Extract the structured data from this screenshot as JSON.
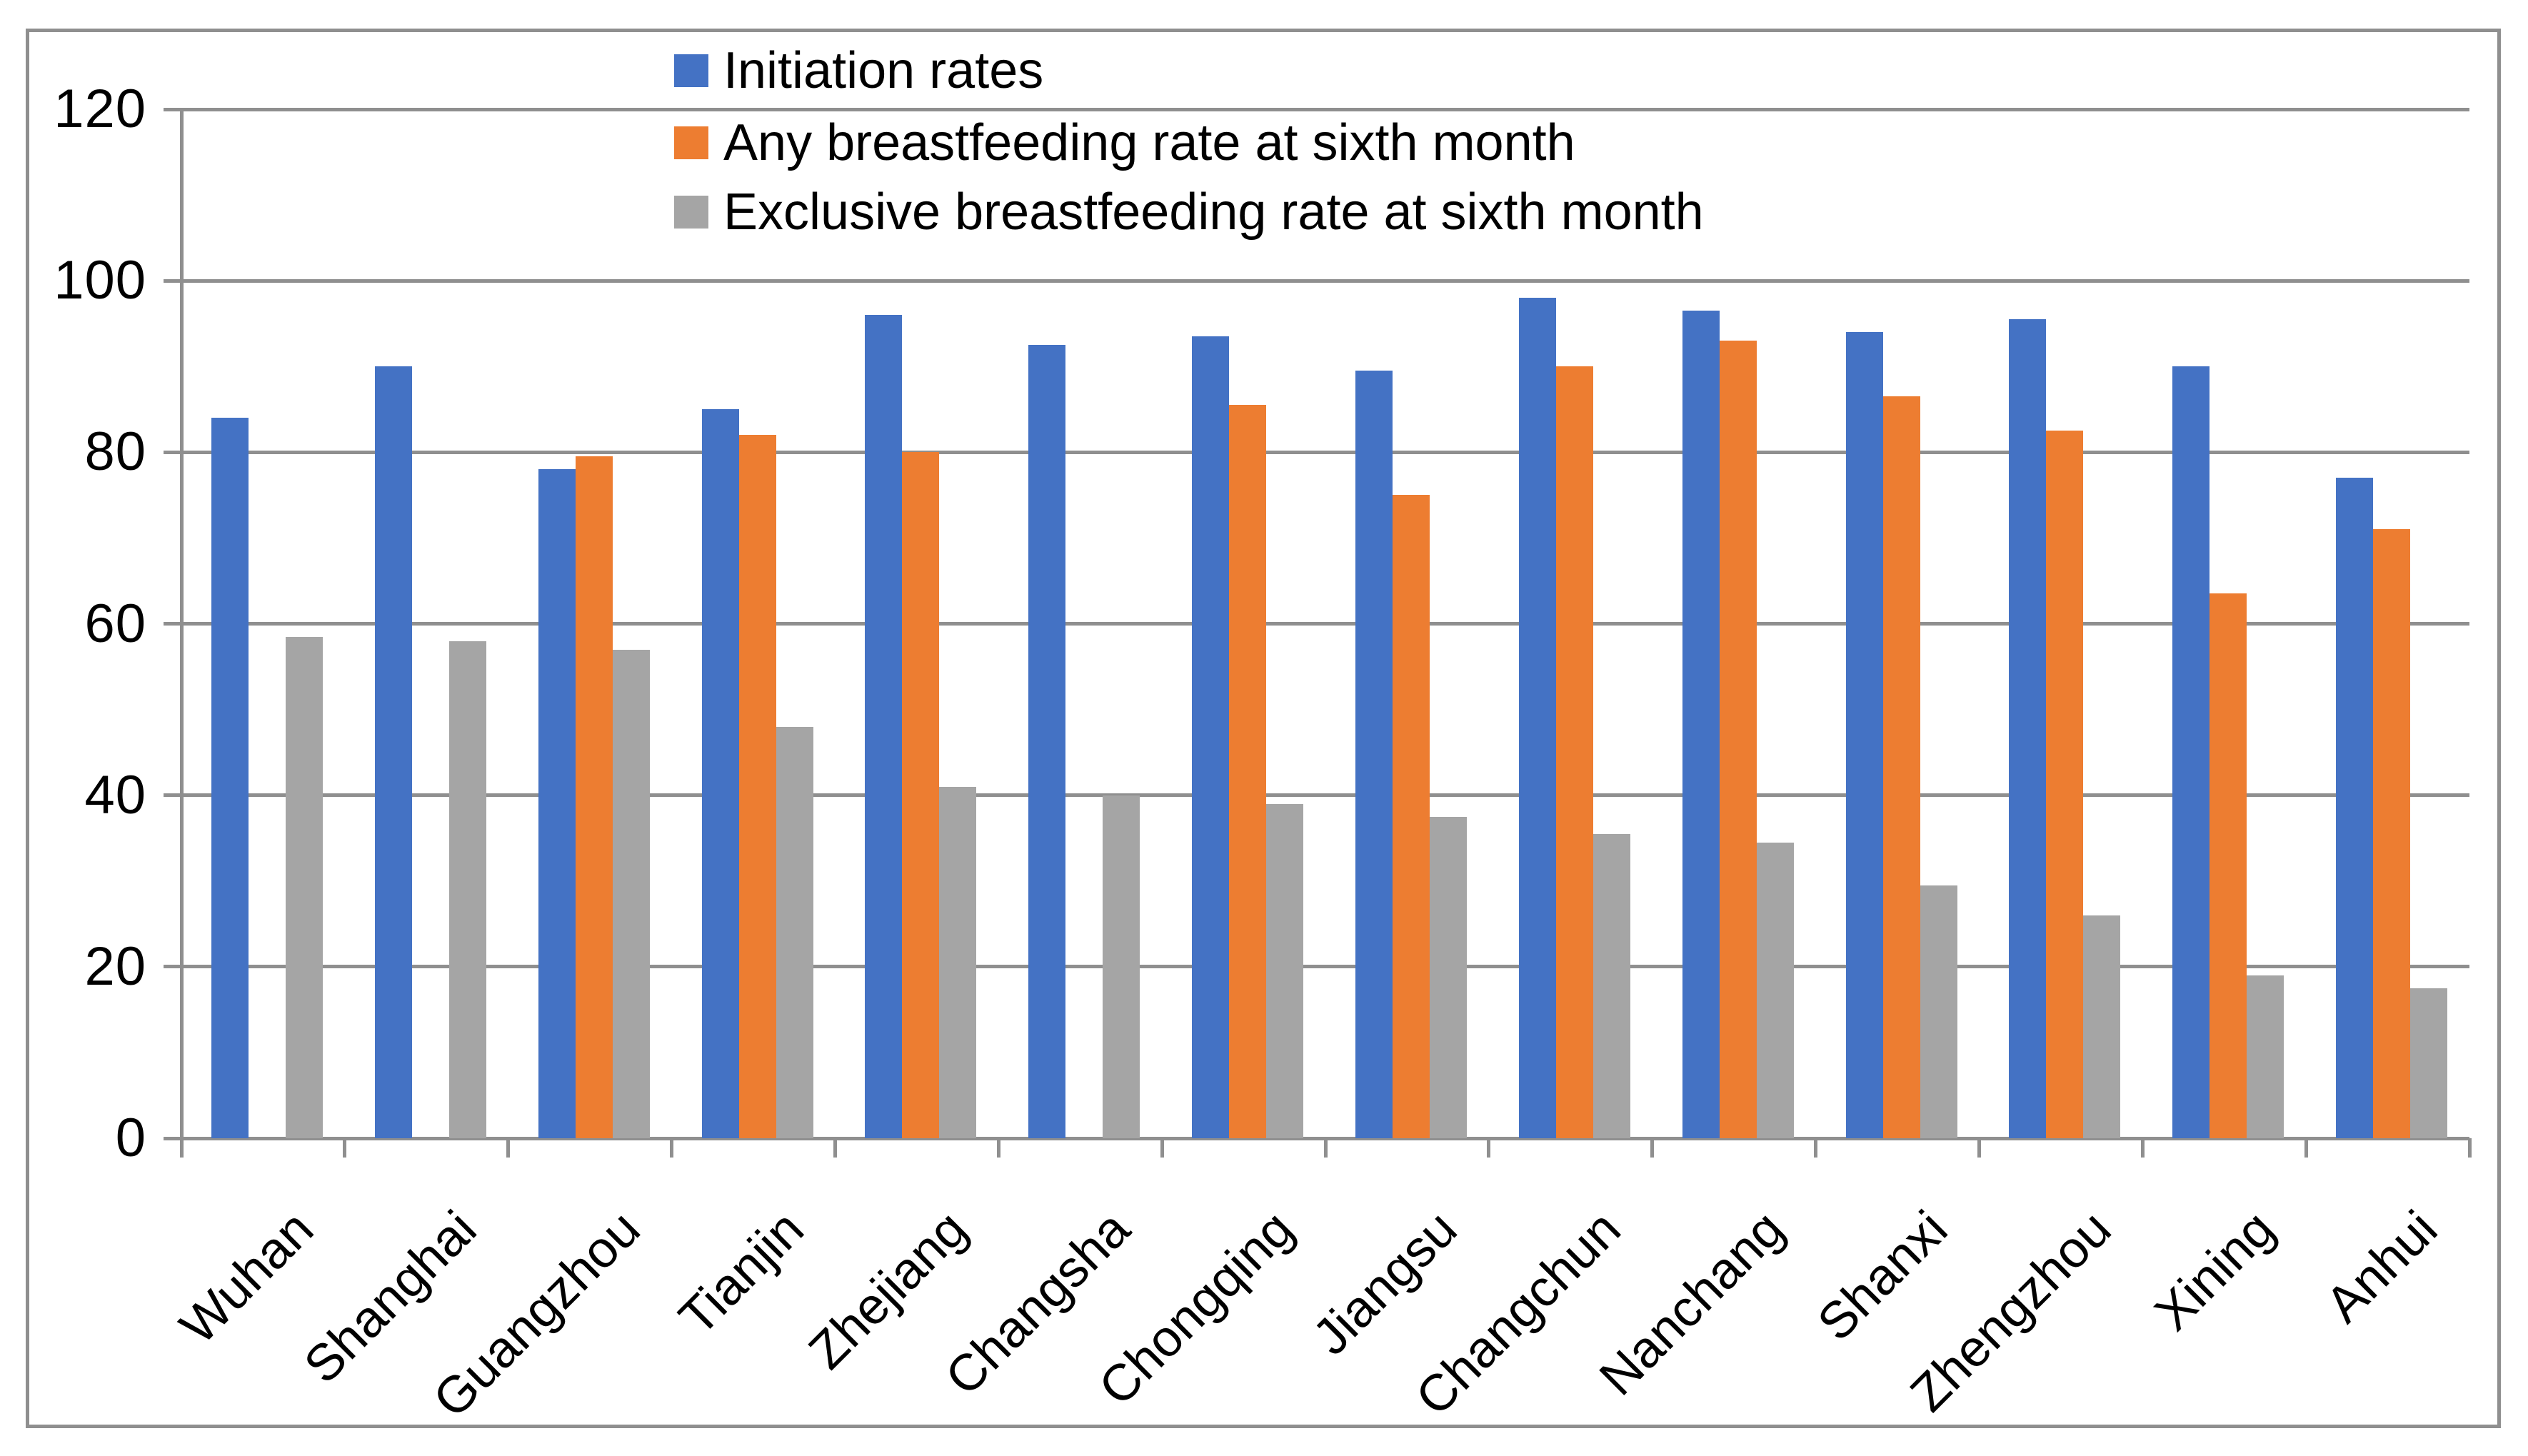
{
  "chart_data": {
    "type": "bar",
    "title": "",
    "xlabel": "",
    "ylabel": "",
    "categories": [
      "Wuhan",
      "Shanghai",
      "Guangzhou",
      "Tianjin",
      "Zhejiang",
      "Changsha",
      "Chongqing",
      "Jiangsu",
      "Changchun",
      "Nanchang",
      "Shanxi",
      "Zhengzhou",
      "Xining",
      "Anhui"
    ],
    "series": [
      {
        "name": "Initiation rates",
        "color": "#4472C4",
        "values": [
          84,
          90,
          78,
          85,
          96,
          92.5,
          93.5,
          89.5,
          98,
          96.5,
          94,
          95.5,
          90,
          77
        ]
      },
      {
        "name": "Any breastfeeding rate at sixth month",
        "color": "#ED7D31",
        "values": [
          null,
          null,
          79.5,
          82,
          80,
          null,
          85.5,
          75,
          90,
          93,
          86.5,
          82.5,
          63.5,
          71
        ]
      },
      {
        "name": "Exclusive breastfeeding rate at sixth month",
        "color": "#A5A5A5",
        "values": [
          58.5,
          58,
          57,
          48,
          41,
          40,
          39,
          37.5,
          35.5,
          34.5,
          29.5,
          26,
          19,
          17.5
        ]
      }
    ],
    "ylim": [
      0,
      120
    ],
    "ytick_step": 20,
    "ytick_labels": [
      "0",
      "20",
      "40",
      "60",
      "80",
      "100",
      "120"
    ],
    "grid": "horizontal",
    "legend_position": "top-inside",
    "axis_color": "#8f8f8f",
    "text_color": "#000000"
  }
}
